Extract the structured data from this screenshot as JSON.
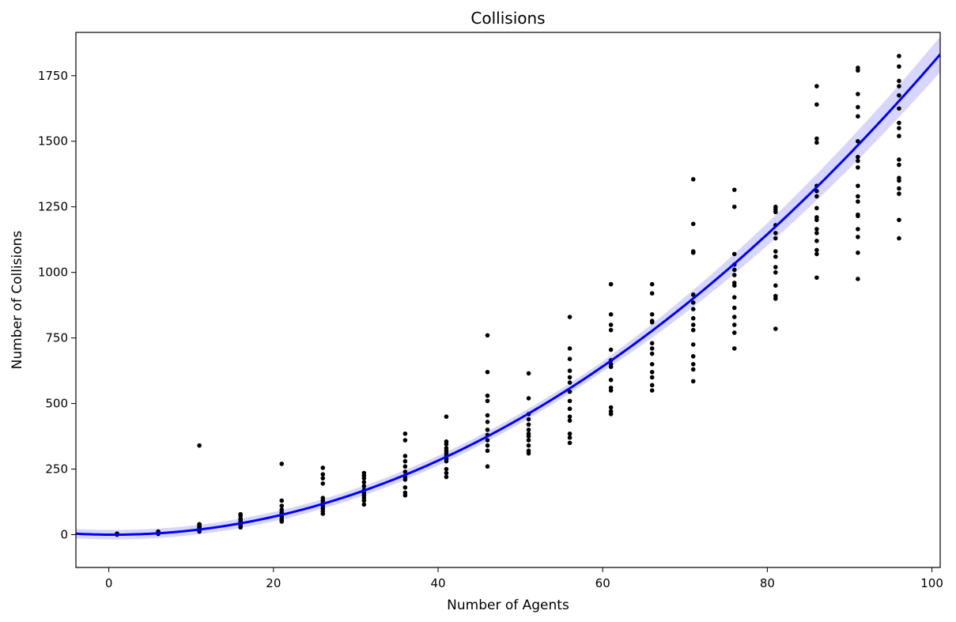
{
  "chart_data": {
    "type": "scatter",
    "title": "Collisions",
    "xlabel": "Number of Agents",
    "ylabel": "Number of Collisions",
    "xlim": [
      -4,
      101
    ],
    "ylim": [
      -125,
      1915
    ],
    "x_ticks": [
      0,
      20,
      40,
      60,
      80,
      100
    ],
    "y_ticks": [
      0,
      250,
      500,
      750,
      1000,
      1250,
      1500,
      1750
    ],
    "grid": false,
    "legend": "none",
    "colors": {
      "points": "#000000",
      "fit_line": "#0000ff",
      "confidence_band": "#c8c8ff"
    },
    "series": [
      {
        "kind": "scatter",
        "points": [
          [
            1,
            0
          ],
          [
            1,
            1
          ],
          [
            1,
            2
          ],
          [
            1,
            3
          ],
          [
            1,
            4
          ],
          [
            6,
            3
          ],
          [
            6,
            5
          ],
          [
            6,
            7
          ],
          [
            6,
            8
          ],
          [
            6,
            10
          ],
          [
            6,
            12
          ],
          [
            11,
            12
          ],
          [
            11,
            15
          ],
          [
            11,
            20
          ],
          [
            11,
            25
          ],
          [
            11,
            28
          ],
          [
            11,
            30
          ],
          [
            11,
            32
          ],
          [
            11,
            35
          ],
          [
            11,
            38
          ],
          [
            11,
            40
          ],
          [
            11,
            340
          ],
          [
            16,
            28
          ],
          [
            16,
            32
          ],
          [
            16,
            38
          ],
          [
            16,
            45
          ],
          [
            16,
            48
          ],
          [
            16,
            52
          ],
          [
            16,
            58
          ],
          [
            16,
            62
          ],
          [
            16,
            72
          ],
          [
            16,
            78
          ],
          [
            21,
            50
          ],
          [
            21,
            55
          ],
          [
            21,
            62
          ],
          [
            21,
            70
          ],
          [
            21,
            78
          ],
          [
            21,
            85
          ],
          [
            21,
            95
          ],
          [
            21,
            110
          ],
          [
            21,
            130
          ],
          [
            21,
            270
          ],
          [
            26,
            80
          ],
          [
            26,
            90
          ],
          [
            26,
            100
          ],
          [
            26,
            110
          ],
          [
            26,
            120
          ],
          [
            26,
            130
          ],
          [
            26,
            140
          ],
          [
            26,
            195
          ],
          [
            26,
            215
          ],
          [
            26,
            230
          ],
          [
            26,
            255
          ],
          [
            31,
            115
          ],
          [
            31,
            130
          ],
          [
            31,
            140
          ],
          [
            31,
            150
          ],
          [
            31,
            160
          ],
          [
            31,
            170
          ],
          [
            31,
            185
          ],
          [
            31,
            200
          ],
          [
            31,
            215
          ],
          [
            31,
            225
          ],
          [
            31,
            235
          ],
          [
            36,
            150
          ],
          [
            36,
            160
          ],
          [
            36,
            180
          ],
          [
            36,
            210
          ],
          [
            36,
            220
          ],
          [
            36,
            240
          ],
          [
            36,
            260
          ],
          [
            36,
            280
          ],
          [
            36,
            300
          ],
          [
            36,
            360
          ],
          [
            36,
            385
          ],
          [
            41,
            220
          ],
          [
            41,
            235
          ],
          [
            41,
            250
          ],
          [
            41,
            280
          ],
          [
            41,
            290
          ],
          [
            41,
            300
          ],
          [
            41,
            310
          ],
          [
            41,
            320
          ],
          [
            41,
            330
          ],
          [
            41,
            345
          ],
          [
            41,
            355
          ],
          [
            41,
            450
          ],
          [
            46,
            260
          ],
          [
            46,
            320
          ],
          [
            46,
            340
          ],
          [
            46,
            360
          ],
          [
            46,
            380
          ],
          [
            46,
            400
          ],
          [
            46,
            430
          ],
          [
            46,
            455
          ],
          [
            46,
            510
          ],
          [
            46,
            530
          ],
          [
            46,
            620
          ],
          [
            46,
            760
          ],
          [
            51,
            310
          ],
          [
            51,
            320
          ],
          [
            51,
            340
          ],
          [
            51,
            360
          ],
          [
            51,
            375
          ],
          [
            51,
            385
          ],
          [
            51,
            400
          ],
          [
            51,
            420
          ],
          [
            51,
            440
          ],
          [
            51,
            460
          ],
          [
            51,
            520
          ],
          [
            51,
            615
          ],
          [
            56,
            350
          ],
          [
            56,
            370
          ],
          [
            56,
            385
          ],
          [
            56,
            435
          ],
          [
            56,
            450
          ],
          [
            56,
            480
          ],
          [
            56,
            510
          ],
          [
            56,
            545
          ],
          [
            56,
            580
          ],
          [
            56,
            600
          ],
          [
            56,
            625
          ],
          [
            56,
            670
          ],
          [
            56,
            710
          ],
          [
            56,
            830
          ],
          [
            61,
            460
          ],
          [
            61,
            470
          ],
          [
            61,
            485
          ],
          [
            61,
            550
          ],
          [
            61,
            560
          ],
          [
            61,
            590
          ],
          [
            61,
            640
          ],
          [
            61,
            650
          ],
          [
            61,
            665
          ],
          [
            61,
            705
          ],
          [
            61,
            780
          ],
          [
            61,
            800
          ],
          [
            61,
            840
          ],
          [
            61,
            955
          ],
          [
            66,
            550
          ],
          [
            66,
            570
          ],
          [
            66,
            600
          ],
          [
            66,
            620
          ],
          [
            66,
            650
          ],
          [
            66,
            690
          ],
          [
            66,
            710
          ],
          [
            66,
            730
          ],
          [
            66,
            810
          ],
          [
            66,
            815
          ],
          [
            66,
            840
          ],
          [
            66,
            920
          ],
          [
            66,
            955
          ],
          [
            71,
            585
          ],
          [
            71,
            630
          ],
          [
            71,
            650
          ],
          [
            71,
            680
          ],
          [
            71,
            725
          ],
          [
            71,
            780
          ],
          [
            71,
            800
          ],
          [
            71,
            825
          ],
          [
            71,
            860
          ],
          [
            71,
            885
          ],
          [
            71,
            915
          ],
          [
            71,
            1075
          ],
          [
            71,
            1080
          ],
          [
            71,
            1185
          ],
          [
            71,
            1355
          ],
          [
            76,
            710
          ],
          [
            76,
            770
          ],
          [
            76,
            800
          ],
          [
            76,
            830
          ],
          [
            76,
            865
          ],
          [
            76,
            905
          ],
          [
            76,
            950
          ],
          [
            76,
            960
          ],
          [
            76,
            990
          ],
          [
            76,
            1010
          ],
          [
            76,
            1030
          ],
          [
            76,
            1070
          ],
          [
            76,
            1250
          ],
          [
            76,
            1315
          ],
          [
            81,
            785
          ],
          [
            81,
            900
          ],
          [
            81,
            910
          ],
          [
            81,
            950
          ],
          [
            81,
            1000
          ],
          [
            81,
            1020
          ],
          [
            81,
            1060
          ],
          [
            81,
            1080
          ],
          [
            81,
            1130
          ],
          [
            81,
            1150
          ],
          [
            81,
            1180
          ],
          [
            81,
            1230
          ],
          [
            81,
            1240
          ],
          [
            81,
            1250
          ],
          [
            86,
            980
          ],
          [
            86,
            1070
          ],
          [
            86,
            1085
          ],
          [
            86,
            1120
          ],
          [
            86,
            1150
          ],
          [
            86,
            1165
          ],
          [
            86,
            1200
          ],
          [
            86,
            1210
          ],
          [
            86,
            1245
          ],
          [
            86,
            1290
          ],
          [
            86,
            1310
          ],
          [
            86,
            1330
          ],
          [
            86,
            1495
          ],
          [
            86,
            1510
          ],
          [
            86,
            1640
          ],
          [
            86,
            1710
          ],
          [
            91,
            975
          ],
          [
            91,
            1075
          ],
          [
            91,
            1135
          ],
          [
            91,
            1165
          ],
          [
            91,
            1215
          ],
          [
            91,
            1220
          ],
          [
            91,
            1270
          ],
          [
            91,
            1290
          ],
          [
            91,
            1330
          ],
          [
            91,
            1400
          ],
          [
            91,
            1425
          ],
          [
            91,
            1440
          ],
          [
            91,
            1500
          ],
          [
            91,
            1595
          ],
          [
            91,
            1630
          ],
          [
            91,
            1680
          ],
          [
            91,
            1770
          ],
          [
            91,
            1780
          ],
          [
            96,
            1130
          ],
          [
            96,
            1200
          ],
          [
            96,
            1300
          ],
          [
            96,
            1320
          ],
          [
            96,
            1350
          ],
          [
            96,
            1360
          ],
          [
            96,
            1410
          ],
          [
            96,
            1430
          ],
          [
            96,
            1520
          ],
          [
            96,
            1550
          ],
          [
            96,
            1570
          ],
          [
            96,
            1625
          ],
          [
            96,
            1675
          ],
          [
            96,
            1710
          ],
          [
            96,
            1730
          ],
          [
            96,
            1785
          ],
          [
            96,
            1825
          ]
        ]
      },
      {
        "kind": "fit_line",
        "model": "quadratic",
        "coefficients": {
          "a": 0.1815,
          "b": -0.2,
          "c": 0
        },
        "x_range": [
          -4,
          101
        ],
        "band_half_width": {
          "base": 18,
          "slope": 0.00045,
          "quadratic_scale": 1.0
        }
      }
    ]
  }
}
